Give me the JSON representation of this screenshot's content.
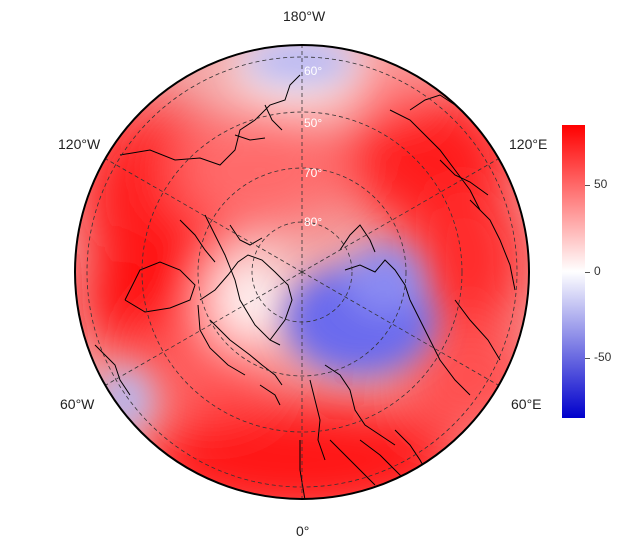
{
  "map": {
    "projection": "north-polar-stereographic",
    "longitude_labels": {
      "top": "180°W",
      "upper_left": "120°W",
      "upper_right": "120°E",
      "lower_left": "60°W",
      "lower_right": "60°E",
      "bottom": "0°"
    },
    "latitude_labels": [
      "60°",
      "50°",
      "70°",
      "80°"
    ],
    "graticule_style": "dashed",
    "field_colors": {
      "positive": "#ff0000",
      "zero": "#ffffff",
      "negative": "#0000cc"
    }
  },
  "colorbar": {
    "range": [
      -85,
      85
    ],
    "ticks": [
      {
        "value": 50,
        "label": "50"
      },
      {
        "value": 0,
        "label": "0"
      },
      {
        "value": -50,
        "label": "-50"
      }
    ]
  }
}
